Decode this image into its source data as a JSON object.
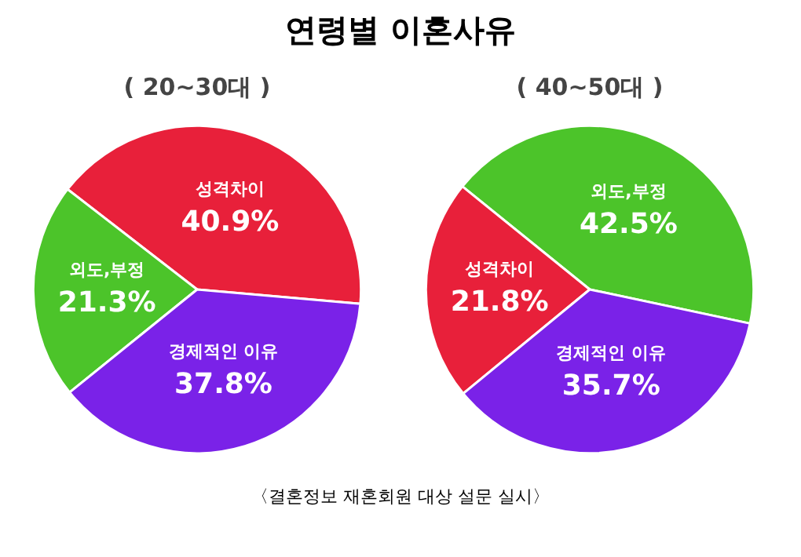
{
  "chart_data": [
    {
      "type": "pie",
      "title": "( 20~30대 )",
      "categories": [
        "성격차이",
        "외도,부정",
        "경제적인 이유"
      ],
      "values": [
        40.9,
        21.3,
        37.8
      ],
      "colors": [
        "#e8203a",
        "#4cc42a",
        "#7a22e8"
      ],
      "value_labels": [
        "40.9%",
        "21.3%",
        "37.8%"
      ],
      "annotations": [
        "연령별 이혼사유"
      ]
    },
    {
      "type": "pie",
      "title": "( 40~50대 )",
      "categories": [
        "외도,부정",
        "성격차이",
        "경제적인 이유"
      ],
      "values": [
        42.5,
        21.8,
        35.7
      ],
      "colors": [
        "#4cc42a",
        "#e8203a",
        "#7a22e8"
      ],
      "value_labels": [
        "42.5%",
        "21.8%",
        "35.7%"
      ],
      "annotations": [
        "〈결혼정보 재혼회원 대상 설문 실시〉"
      ]
    }
  ]
}
